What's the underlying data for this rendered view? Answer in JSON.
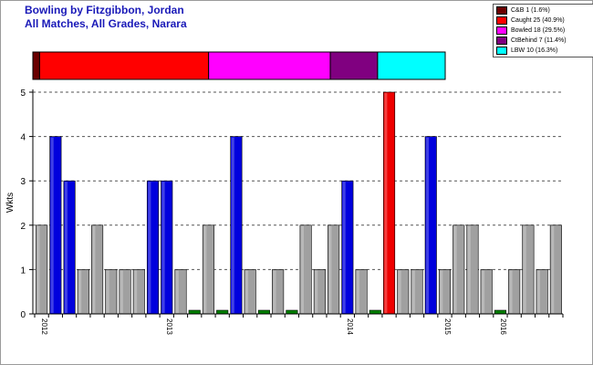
{
  "chart_data": [
    {
      "type": "bar",
      "orientation": "horizontal-stacked",
      "categories": [
        "C&B",
        "Caught",
        "Bowled",
        "CtBehind",
        "LBW"
      ],
      "values": [
        1,
        25,
        18,
        7,
        10
      ],
      "percents": [
        1.6,
        40.9,
        29.5,
        11.4,
        16.3
      ],
      "colors": [
        "#6b0000",
        "#ff0000",
        "#ff00ff",
        "#800080",
        "#00ffff"
      ],
      "legend": {
        "position": "top-right",
        "entries": [
          "C&B 1 (1.6%)",
          "Caught 25 (40.9%)",
          "Bowled 18 (29.5%)",
          "CtBehind 7 (11.4%)",
          "LBW 10 (16.3%)"
        ]
      }
    },
    {
      "type": "bar",
      "title": "Bowling by Fitzgibbon, Jordan",
      "subtitle": "All Matches, All Grades, Narara",
      "xlabel": "",
      "ylabel": "Wkts",
      "ylim": [
        0,
        5
      ],
      "yticks": [
        "0",
        "1",
        "2",
        "3",
        "4",
        "5"
      ],
      "grid": true,
      "x_tick_labels": [
        {
          "label": "2012",
          "index": 0
        },
        {
          "label": "2013",
          "index": 9
        },
        {
          "label": "2014",
          "index": 22
        },
        {
          "label": "2015",
          "index": 29
        },
        {
          "label": "2016",
          "index": 33
        }
      ],
      "colors": {
        "normal": "#a0a0a0",
        "good": "#0000dd",
        "best": "#ee0000",
        "zero": "#008000"
      },
      "values": [
        2,
        4,
        3,
        1,
        2,
        1,
        1,
        1,
        3,
        3,
        1,
        0,
        2,
        0,
        4,
        1,
        0,
        1,
        0,
        2,
        1,
        2,
        3,
        1,
        0,
        5,
        1,
        1,
        4,
        1,
        2,
        2,
        1,
        0,
        1,
        2,
        1,
        2
      ],
      "highlight": [
        "normal",
        "good",
        "good",
        "normal",
        "normal",
        "normal",
        "normal",
        "normal",
        "good",
        "good",
        "normal",
        "zero",
        "normal",
        "zero",
        "good",
        "normal",
        "zero",
        "normal",
        "zero",
        "normal",
        "normal",
        "normal",
        "good",
        "normal",
        "zero",
        "best",
        "normal",
        "normal",
        "good",
        "normal",
        "normal",
        "normal",
        "normal",
        "zero",
        "normal",
        "normal",
        "normal",
        "normal"
      ]
    }
  ]
}
